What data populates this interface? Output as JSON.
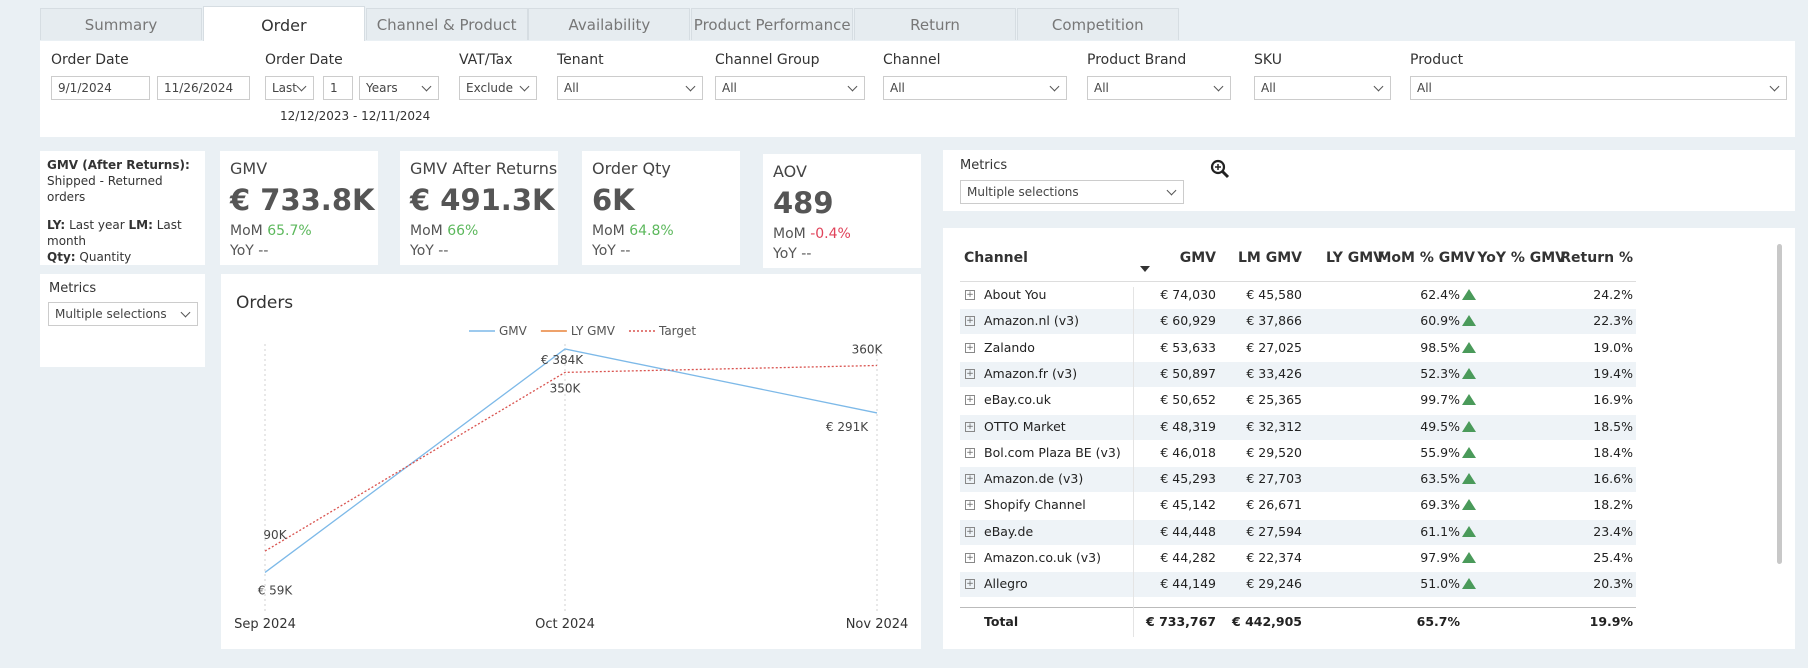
{
  "tabs": [
    "Summary",
    "Order",
    "Channel & Product",
    "Availability",
    "Product Performance",
    "Return",
    "Competition"
  ],
  "order_date": {
    "label": "Order Date",
    "start": "9/1/2024",
    "end": "11/26/2024"
  },
  "relative_date": {
    "label": "Order Date",
    "mode": "Last",
    "count": "1",
    "unit": "Years",
    "range": "12/12/2023 - 12/11/2024"
  },
  "dropdowns": [
    {
      "label": "VAT/Tax",
      "value": "Exclude"
    },
    {
      "label": "Tenant",
      "value": "All"
    },
    {
      "label": "Channel Group",
      "value": "All"
    },
    {
      "label": "Channel",
      "value": "All"
    },
    {
      "label": "Product Brand",
      "value": "All"
    },
    {
      "label": "SKU",
      "value": "All"
    },
    {
      "label": "Product",
      "value": "All"
    }
  ],
  "notes": {
    "gmv_term": "GMV (After Returns):",
    "gmv_def": "Shipped - Returned orders",
    "ly_term": "LY:",
    "ly_def": "Last year",
    "lm_term": "LM:",
    "lm_def": "Last month",
    "qty_term": "Qty:",
    "qty_def": "Quantity"
  },
  "kpis": [
    {
      "title": "GMV",
      "value": "€ 733.8K",
      "mom_label": "MoM",
      "mom": "65.7%",
      "mom_color": "#5cb85c",
      "yoy_label": "YoY",
      "yoy": "--"
    },
    {
      "title": "GMV After Returns",
      "value": "€ 491.3K",
      "mom_label": "MoM",
      "mom": "66%",
      "mom_color": "#5cb85c",
      "yoy_label": "YoY",
      "yoy": "--"
    },
    {
      "title": "Order Qty",
      "value": "6K",
      "mom_label": "MoM",
      "mom": "64.8%",
      "mom_color": "#5cb85c",
      "yoy_label": "YoY",
      "yoy": "--"
    },
    {
      "title": "AOV",
      "value": "489",
      "mom_label": "MoM",
      "mom": "-0.4%",
      "mom_color": "#e0435a",
      "yoy_label": "YoY",
      "yoy": "--"
    }
  ],
  "metrics_left": {
    "label": "Metrics",
    "value": "Multiple selections"
  },
  "metrics_right": {
    "label": "Metrics",
    "value": "Multiple selections"
  },
  "orders_chart": {
    "type": "line",
    "title": "Orders",
    "categories": [
      "Sep 2024",
      "Oct 2024",
      "Nov 2024"
    ],
    "series": [
      {
        "name": "GMV",
        "color": "#7db9e8",
        "values": [
          59,
          384,
          291
        ],
        "value_labels": [
          "€ 59K",
          "€ 384K",
          "€ 291K"
        ]
      },
      {
        "name": "LY GMV",
        "color": "#e8833a",
        "values": [
          null,
          null,
          null
        ]
      },
      {
        "name": "Target",
        "color": "#d9534f",
        "values": [
          90,
          350,
          360
        ],
        "value_labels": [
          "90K",
          "350K",
          "360K"
        ]
      }
    ],
    "ylim": [
      0,
      400
    ]
  },
  "channel_table": {
    "columns": [
      "Channel",
      "GMV",
      "LM GMV",
      "LY GMV",
      "MoM % GMV",
      "YoY % GMV",
      "Return %"
    ],
    "rows": [
      {
        "channel": "About You",
        "gmv": "€ 74,030",
        "lm_gmv": "€ 45,580",
        "mom": "62.4%",
        "return": "24.2%"
      },
      {
        "channel": "Amazon.nl (v3)",
        "gmv": "€ 60,929",
        "lm_gmv": "€ 37,866",
        "mom": "60.9%",
        "return": "22.3%"
      },
      {
        "channel": "Zalando",
        "gmv": "€ 53,633",
        "lm_gmv": "€ 27,025",
        "mom": "98.5%",
        "return": "19.0%"
      },
      {
        "channel": "Amazon.fr (v3)",
        "gmv": "€ 50,897",
        "lm_gmv": "€ 33,426",
        "mom": "52.3%",
        "return": "19.4%"
      },
      {
        "channel": "eBay.co.uk",
        "gmv": "€ 50,652",
        "lm_gmv": "€ 25,365",
        "mom": "99.7%",
        "return": "16.9%"
      },
      {
        "channel": "OTTO Market",
        "gmv": "€ 48,319",
        "lm_gmv": "€ 32,312",
        "mom": "49.5%",
        "return": "18.5%"
      },
      {
        "channel": "Bol.com Plaza BE (v3)",
        "gmv": "€ 46,018",
        "lm_gmv": "€ 29,520",
        "mom": "55.9%",
        "return": "18.4%"
      },
      {
        "channel": "Amazon.de (v3)",
        "gmv": "€ 45,293",
        "lm_gmv": "€ 27,703",
        "mom": "63.5%",
        "return": "16.6%"
      },
      {
        "channel": "Shopify Channel",
        "gmv": "€ 45,142",
        "lm_gmv": "€ 26,671",
        "mom": "69.3%",
        "return": "18.2%"
      },
      {
        "channel": "eBay.de",
        "gmv": "€ 44,448",
        "lm_gmv": "€ 27,594",
        "mom": "61.1%",
        "return": "23.4%"
      },
      {
        "channel": "Amazon.co.uk (v3)",
        "gmv": "€ 44,282",
        "lm_gmv": "€ 22,374",
        "mom": "97.9%",
        "return": "25.4%"
      },
      {
        "channel": "Allegro",
        "gmv": "€ 44,149",
        "lm_gmv": "€ 29,246",
        "mom": "51.0%",
        "return": "20.3%"
      }
    ],
    "total": {
      "label": "Total",
      "gmv": "€ 733,767",
      "lm_gmv": "€ 442,905",
      "mom": "65.7%",
      "return": "19.9%"
    }
  }
}
